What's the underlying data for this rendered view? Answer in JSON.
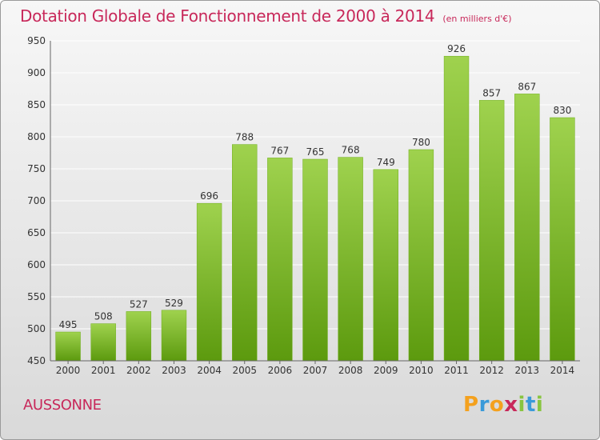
{
  "title": "Dotation Globale de Fonctionnement de 2000 à 2014",
  "subtitle": "(en milliers d'€)",
  "commune": "AUSSONNE",
  "logo": {
    "letters": [
      "P",
      "r",
      "o",
      "x",
      "i",
      "t",
      "i"
    ],
    "colors": [
      "#f4a11e",
      "#3a9ad9",
      "#f4a11e",
      "#c8285a",
      "#88c540",
      "#3a9ad9",
      "#88c540"
    ]
  },
  "colors": {
    "title": "#c8285a",
    "bar_light": "#9fd24e",
    "bar_dark": "#5c9a0e",
    "grid": "#ffffff"
  },
  "chart_data": {
    "type": "bar",
    "title": "Dotation Globale de Fonctionnement de 2000 à 2014",
    "subtitle": "(en milliers d'€)",
    "categories": [
      "2000",
      "2001",
      "2002",
      "2003",
      "2004",
      "2005",
      "2006",
      "2007",
      "2008",
      "2009",
      "2010",
      "2011",
      "2012",
      "2013",
      "2014"
    ],
    "values": [
      495,
      508,
      527,
      529,
      696,
      788,
      767,
      765,
      768,
      749,
      780,
      926,
      857,
      867,
      830
    ],
    "ylim": [
      450,
      950
    ],
    "yticks": [
      450,
      500,
      550,
      600,
      650,
      700,
      750,
      800,
      850,
      900,
      950
    ],
    "grid": true,
    "xlabel": "",
    "ylabel": ""
  }
}
